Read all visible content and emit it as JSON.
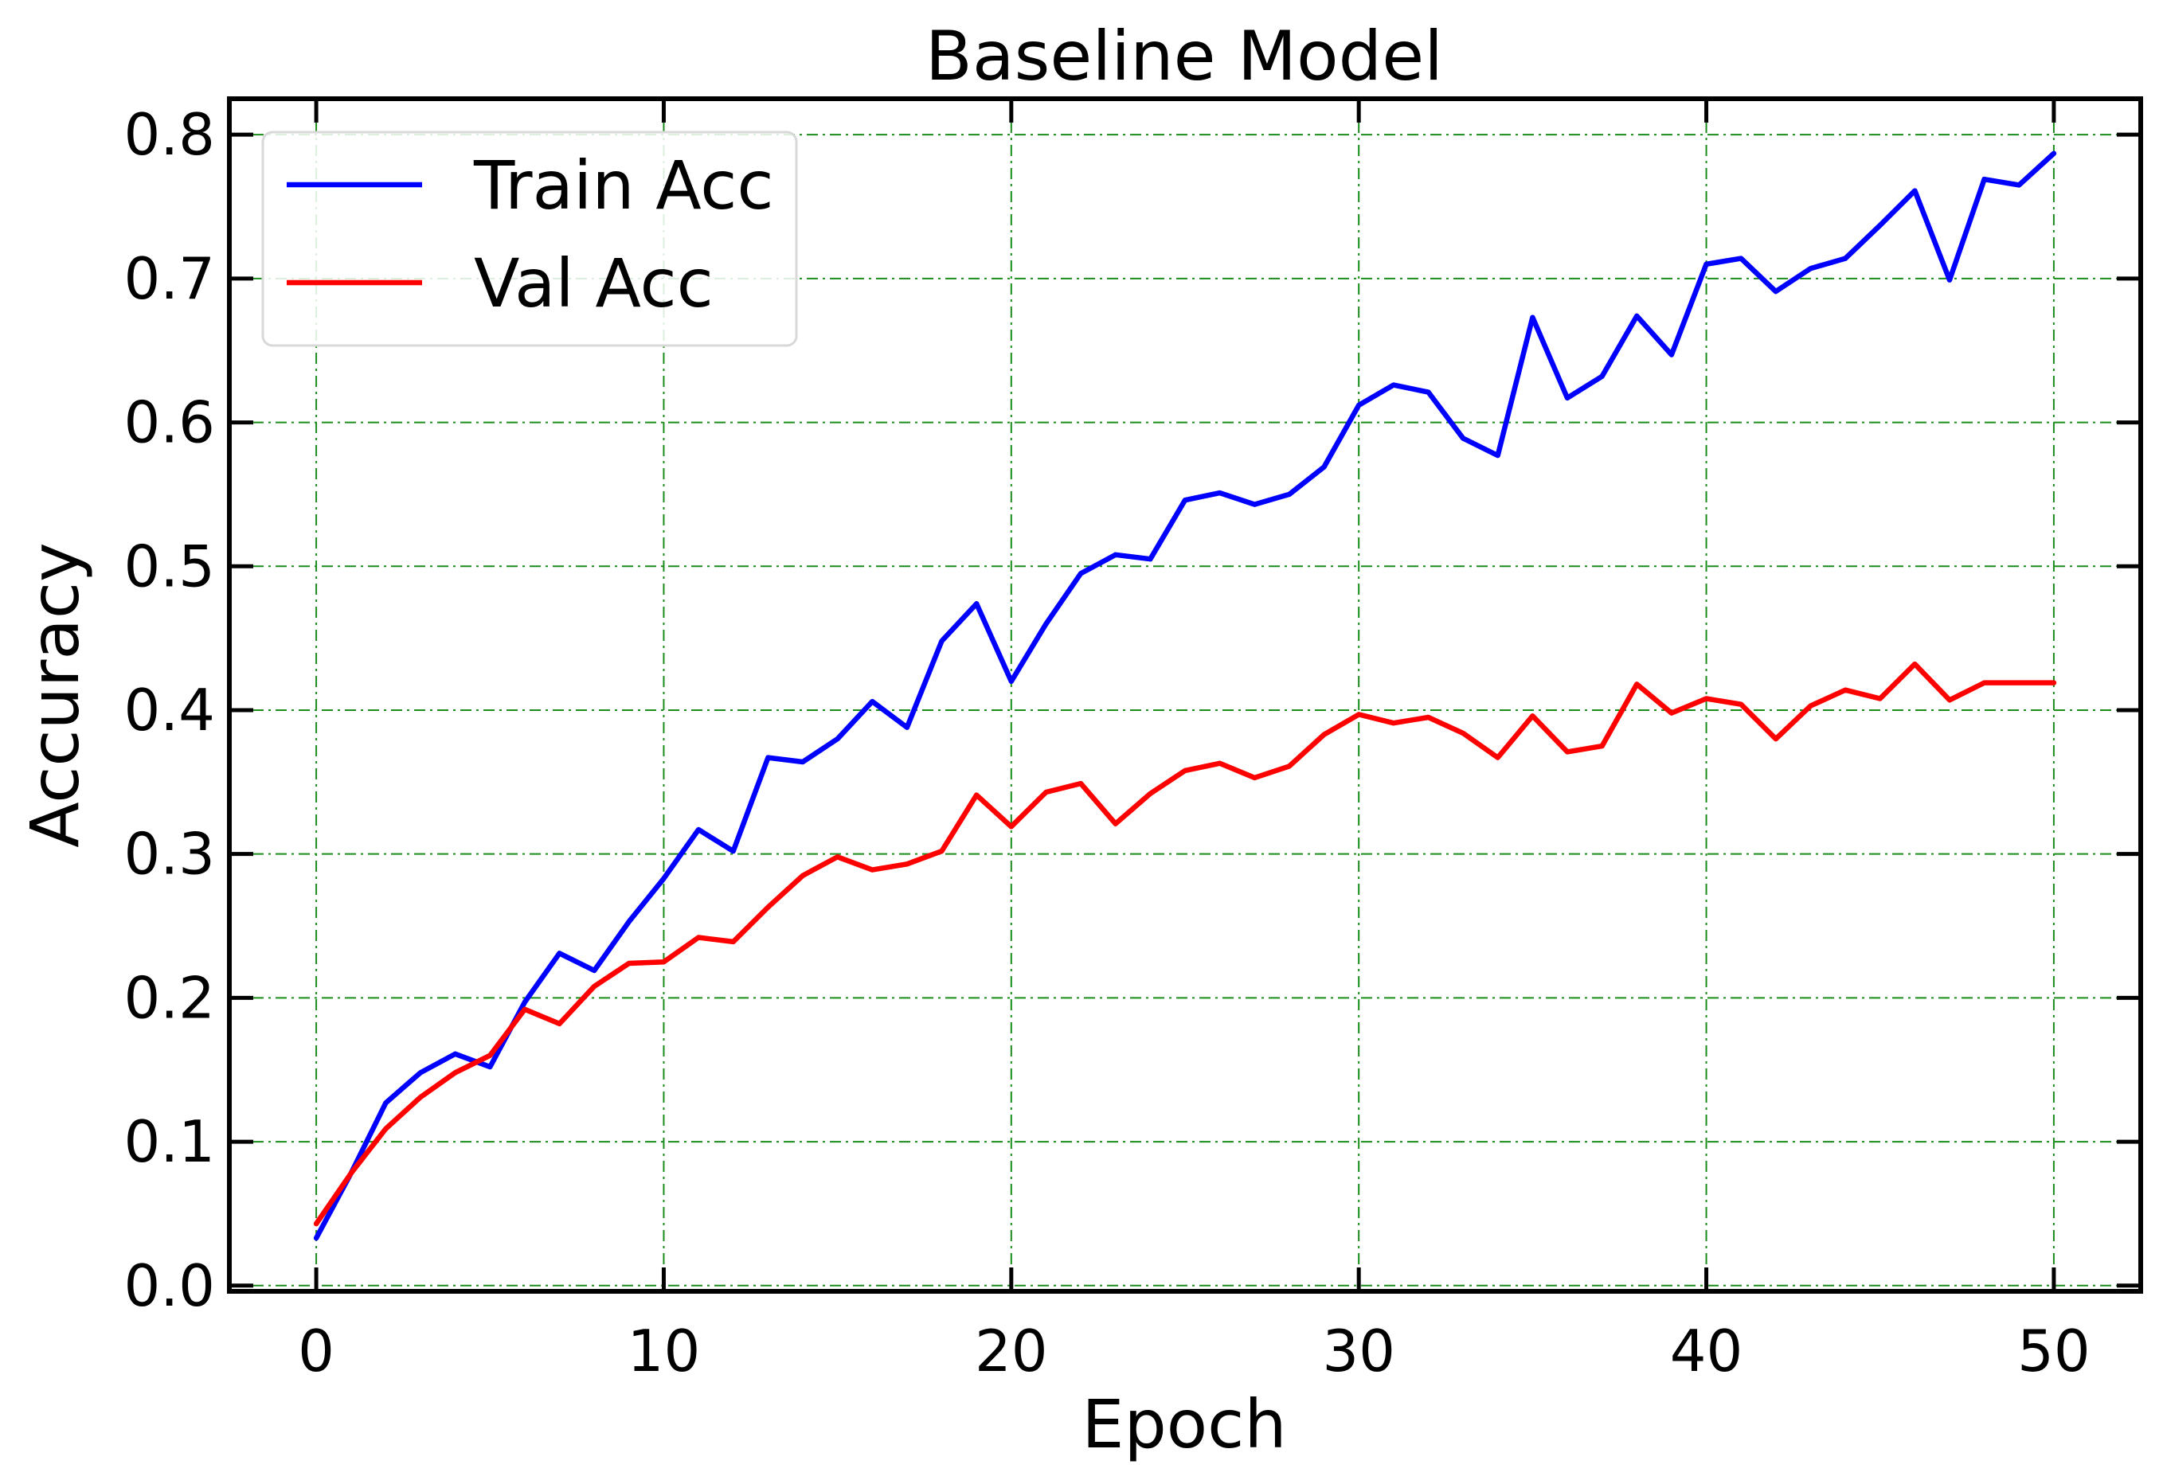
{
  "chart_data": {
    "type": "line",
    "title": "Baseline Model",
    "xlabel": "Epoch",
    "ylabel": "Accuracy",
    "xlim": [
      -2.5,
      52.5
    ],
    "ylim": [
      -0.004,
      0.825
    ],
    "xticks": [
      0,
      10,
      20,
      30,
      40,
      50
    ],
    "xtick_labels": [
      "0",
      "10",
      "20",
      "30",
      "40",
      "50"
    ],
    "yticks": [
      0.0,
      0.1,
      0.2,
      0.3,
      0.4,
      0.5,
      0.6,
      0.7,
      0.8
    ],
    "ytick_labels": [
      "0.0",
      "0.1",
      "0.2",
      "0.3",
      "0.4",
      "0.5",
      "0.6",
      "0.7",
      "0.8"
    ],
    "grid": true,
    "legend_position": "upper-left",
    "x": [
      0,
      1,
      2,
      3,
      4,
      5,
      6,
      7,
      8,
      9,
      10,
      11,
      12,
      13,
      14,
      15,
      16,
      17,
      18,
      19,
      20,
      21,
      22,
      23,
      24,
      25,
      26,
      27,
      28,
      29,
      30,
      31,
      32,
      33,
      34,
      35,
      36,
      37,
      38,
      39,
      40,
      41,
      42,
      43,
      44,
      45,
      46,
      47,
      48,
      49,
      50
    ],
    "series": [
      {
        "name": "Train Acc",
        "color": "#0000ff",
        "values": [
          0.033,
          0.078,
          0.127,
          0.148,
          0.161,
          0.152,
          0.197,
          0.231,
          0.219,
          0.253,
          0.283,
          0.317,
          0.302,
          0.367,
          0.364,
          0.38,
          0.406,
          0.388,
          0.448,
          0.474,
          0.42,
          0.46,
          0.495,
          0.508,
          0.505,
          0.546,
          0.551,
          0.543,
          0.55,
          0.569,
          0.612,
          0.626,
          0.621,
          0.589,
          0.577,
          0.673,
          0.617,
          0.632,
          0.674,
          0.647,
          0.71,
          0.714,
          0.691,
          0.707,
          0.714,
          0.737,
          0.761,
          0.699,
          0.769,
          0.765,
          0.787
        ]
      },
      {
        "name": "Val Acc",
        "color": "#ff0000",
        "values": [
          0.043,
          0.078,
          0.109,
          0.131,
          0.148,
          0.16,
          0.192,
          0.182,
          0.208,
          0.224,
          0.225,
          0.242,
          0.239,
          0.263,
          0.285,
          0.298,
          0.289,
          0.293,
          0.302,
          0.341,
          0.319,
          0.343,
          0.349,
          0.321,
          0.342,
          0.358,
          0.363,
          0.353,
          0.361,
          0.383,
          0.397,
          0.391,
          0.395,
          0.384,
          0.367,
          0.396,
          0.371,
          0.375,
          0.418,
          0.398,
          0.408,
          0.404,
          0.38,
          0.403,
          0.414,
          0.408,
          0.432,
          0.407,
          0.419,
          0.419,
          0.419
        ]
      }
    ]
  }
}
